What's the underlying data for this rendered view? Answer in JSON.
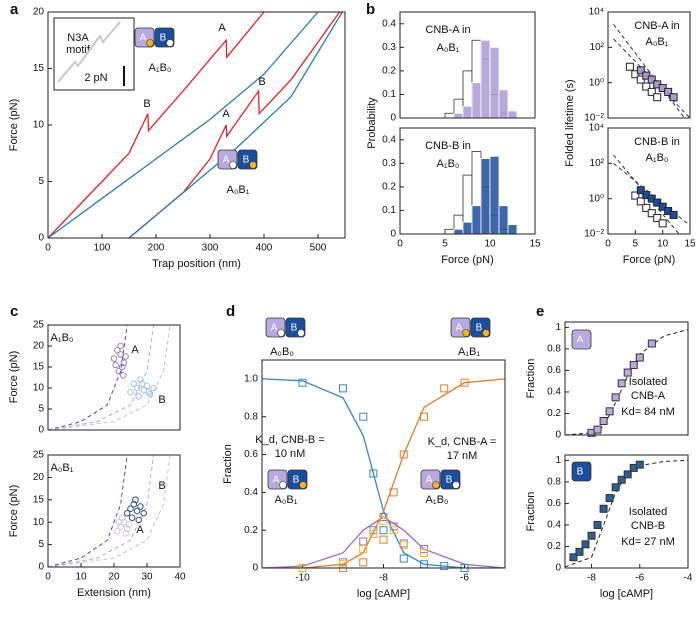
{
  "panels": [
    "a",
    "b",
    "c",
    "d",
    "e"
  ],
  "icons": {
    "a": "A",
    "b": "B"
  },
  "chart_data": [
    {
      "type": "line",
      "xlabel": "Trap position (nm)",
      "ylabel": "Force (pN)",
      "xlim": [
        0,
        550
      ],
      "ylim": [
        0,
        20
      ],
      "xticks": [
        0,
        100,
        200,
        300,
        400,
        500
      ],
      "yticks": [
        0,
        5,
        10,
        15,
        20
      ],
      "series": [
        {
          "color": "#e8212a",
          "mark": "line",
          "x": [
            0,
            50,
            100,
            150,
            185,
            186,
            250,
            330,
            331,
            400
          ],
          "values": [
            0,
            2.5,
            5,
            7.5,
            11,
            9.5,
            13,
            17.5,
            16,
            20
          ]
        },
        {
          "color": "#2b7bba",
          "mark": "line",
          "x": [
            0,
            100,
            200,
            300,
            400,
            500
          ],
          "values": [
            0,
            3.5,
            7,
            10.5,
            14.5,
            20
          ]
        },
        {
          "color": "#e8212a",
          "mark": "line",
          "x": [
            150,
            200,
            250,
            300,
            330,
            331,
            390,
            391,
            450,
            540
          ],
          "values": [
            0,
            2,
            4,
            7,
            10,
            9,
            13,
            11,
            14,
            20
          ]
        },
        {
          "color": "#2b7bba",
          "mark": "line",
          "x": [
            150,
            250,
            350,
            450,
            545
          ],
          "values": [
            0,
            4,
            8,
            12.5,
            20
          ]
        }
      ],
      "annotations": [
        "A",
        "B",
        "A",
        "B",
        "N3A",
        "motif",
        "2 pN",
        "A₁B₀",
        "A₀B₁"
      ]
    },
    {
      "type": "histogram",
      "ylabel": "Probability",
      "xlim": [
        0,
        15
      ],
      "ylim": [
        0,
        0.45
      ],
      "yticks": [
        0,
        0.1,
        0.2,
        0.3,
        0.4
      ],
      "bins": [
        5,
        6,
        7,
        8,
        9,
        10,
        11,
        12,
        13
      ],
      "series": [
        {
          "color": "#333333",
          "fill": "#ffffff",
          "values": [
            0.02,
            0.08,
            0.2,
            0.33,
            0.25,
            0.1,
            0.02,
            0
          ]
        },
        {
          "color": "#ffffff",
          "fill": "#a99bd1",
          "values": [
            0,
            0.02,
            0.05,
            0.15,
            0.33,
            0.3,
            0.12,
            0.03
          ]
        }
      ],
      "annotations": [
        "CNB-A in",
        "A₀B₁"
      ]
    },
    {
      "type": "histogram",
      "xlabel": "Force (pN)",
      "xlim": [
        0,
        15
      ],
      "ylim": [
        0,
        0.45
      ],
      "xticks": [
        0,
        5,
        10,
        15
      ],
      "yticks": [
        0,
        0.1,
        0.2,
        0.3,
        0.4
      ],
      "bins": [
        5,
        6,
        7,
        8,
        9,
        10,
        11,
        12,
        13
      ],
      "series": [
        {
          "color": "#333333",
          "fill": "#ffffff",
          "values": [
            0.02,
            0.08,
            0.25,
            0.35,
            0.2,
            0.08,
            0.02,
            0
          ]
        },
        {
          "color": "#ffffff",
          "fill": "#1b4f9c",
          "values": [
            0,
            0.02,
            0.05,
            0.12,
            0.32,
            0.33,
            0.12,
            0.04
          ]
        }
      ],
      "annotations": [
        "CNB-B in",
        "A₁B₀"
      ]
    },
    {
      "type": "scatter",
      "ylabel": "Folded lifetime (s)",
      "log_y": true,
      "xlim": [
        0,
        15
      ],
      "ylim": [
        0.01,
        10000
      ],
      "yticks": [
        {
          "value": 0.01,
          "label": "10⁻²"
        },
        {
          "value": 1,
          "label": "10⁰"
        },
        {
          "value": 100,
          "label": "10²"
        },
        {
          "value": 10000,
          "label": "10⁴"
        }
      ],
      "series": [
        {
          "color": "#333333",
          "mark": "line",
          "dash": true,
          "x": [
            1,
            14
          ],
          "values": [
            2000,
            0.01
          ]
        },
        {
          "color": "#333333",
          "mark": "line",
          "dash": true,
          "x": [
            1,
            15
          ],
          "values": [
            300,
            0.01
          ]
        },
        {
          "color": "#222222",
          "fill": "#ffffff",
          "mark": "square",
          "x": [
            4,
            5,
            6,
            7,
            8,
            9
          ],
          "values": [
            8,
            3,
            1.5,
            0.6,
            0.3,
            0.15
          ]
        },
        {
          "color": "#222222",
          "fill": "#a99bd1",
          "mark": "square",
          "x": [
            6,
            7,
            8,
            9,
            10,
            11,
            12
          ],
          "values": [
            5,
            2.5,
            1.5,
            0.8,
            0.5,
            0.3,
            0.15
          ]
        }
      ],
      "annotations": [
        "CNB-A in",
        "A₀B₁"
      ]
    },
    {
      "type": "scatter",
      "xlabel": "Force (pN)",
      "log_y": true,
      "xlim": [
        0,
        15
      ],
      "ylim": [
        0.01,
        10000
      ],
      "xticks": [
        0,
        5,
        10,
        15
      ],
      "yticks": [
        {
          "value": 0.01,
          "label": "10⁻²"
        },
        {
          "value": 1,
          "label": "10⁰"
        },
        {
          "value": 100,
          "label": "10²"
        },
        {
          "value": 10000,
          "label": "10⁴"
        }
      ],
      "series": [
        {
          "color": "#333333",
          "mark": "line",
          "dash": true,
          "x": [
            1,
            13
          ],
          "values": [
            300,
            0.01
          ]
        },
        {
          "color": "#333333",
          "mark": "line",
          "dash": true,
          "x": [
            1,
            15
          ],
          "values": [
            100,
            0.03
          ]
        },
        {
          "color": "#222222",
          "fill": "#ffffff",
          "mark": "square",
          "x": [
            5,
            6,
            7,
            8,
            9,
            10
          ],
          "values": [
            1.5,
            0.7,
            0.3,
            0.15,
            0.08,
            0.04
          ]
        },
        {
          "color": "#222222",
          "fill": "#1b4f9c",
          "mark": "square",
          "x": [
            6,
            7,
            8,
            9,
            10,
            11,
            12
          ],
          "values": [
            3,
            1.6,
            1,
            0.6,
            0.35,
            0.2,
            0.12
          ]
        }
      ],
      "annotations": [
        "CNB-B in",
        "A₁B₀"
      ]
    },
    {
      "type": "scatter",
      "ylabel": "Force (pN)",
      "xlim": [
        0,
        40
      ],
      "ylim": [
        0,
        25
      ],
      "yticks": [
        0,
        5,
        10,
        15,
        20,
        25
      ],
      "series": [
        {
          "color": "#6a3fa0",
          "mark": "line",
          "dash": true,
          "x": [
            0,
            10,
            18,
            22,
            24
          ],
          "values": [
            0,
            2,
            6,
            14,
            25
          ]
        },
        {
          "color": "#b3a4d8",
          "mark": "line",
          "dash": true,
          "x": [
            0,
            15,
            25,
            30,
            32
          ],
          "values": [
            0,
            2,
            6,
            14,
            25
          ]
        },
        {
          "color": "#b8c4d8",
          "mark": "line",
          "dash": true,
          "x": [
            0,
            20,
            30,
            35,
            37
          ],
          "values": [
            0,
            2,
            6,
            14,
            25
          ]
        },
        {
          "color": "#8a78c2",
          "mark": "circle",
          "x": [
            20,
            21,
            22,
            22.5,
            23,
            21.5,
            22,
            23.5,
            20.5,
            22.8
          ],
          "values": [
            17,
            19,
            18,
            15,
            16,
            14,
            20,
            17.5,
            15.5,
            13
          ]
        },
        {
          "color": "#9cc0e3",
          "mark": "circle",
          "x": [
            25,
            26,
            27,
            28,
            29,
            30,
            31,
            32,
            28.5,
            27.5,
            30.5
          ],
          "values": [
            9,
            11,
            10,
            12,
            9.5,
            10.5,
            8.5,
            10,
            11,
            8,
            9
          ]
        }
      ],
      "annotations": [
        "A₁B₀",
        "A",
        "B"
      ]
    },
    {
      "type": "scatter",
      "xlabel": "Extension (nm)",
      "ylabel": "Force (pN)",
      "xlim": [
        0,
        40
      ],
      "ylim": [
        0,
        25
      ],
      "xticks": [
        0,
        10,
        20,
        30,
        40
      ],
      "yticks": [
        0,
        5,
        10,
        15,
        20,
        25
      ],
      "series": [
        {
          "color": "#6a3fa0",
          "mark": "line",
          "dash": true,
          "x": [
            0,
            10,
            18,
            22,
            24
          ],
          "values": [
            0,
            2,
            6,
            14,
            25
          ]
        },
        {
          "color": "#b3a4d8",
          "mark": "line",
          "dash": true,
          "x": [
            0,
            15,
            25,
            30,
            32
          ],
          "values": [
            0,
            2,
            6,
            14,
            25
          ]
        },
        {
          "color": "#b8c4d8",
          "mark": "line",
          "dash": true,
          "x": [
            0,
            20,
            30,
            35,
            37
          ],
          "values": [
            0,
            2,
            6,
            14,
            25
          ]
        },
        {
          "color": "#cbbfe6",
          "mark": "circle",
          "x": [
            21,
            22,
            23,
            24,
            22.5,
            23.5,
            24.5,
            21.5
          ],
          "values": [
            8,
            9,
            10,
            8.5,
            11,
            7.5,
            9.5,
            10
          ]
        },
        {
          "color": "#1b3f7c",
          "mark": "circle",
          "x": [
            24,
            25,
            26,
            27,
            28,
            25.5,
            26.5,
            27.5,
            29
          ],
          "values": [
            12,
            13,
            14,
            12.5,
            13.5,
            11,
            15,
            10.5,
            12
          ]
        }
      ],
      "annotations": [
        "A₀B₁",
        "B",
        "A"
      ]
    },
    {
      "type": "line",
      "xlabel": "log [cAMP]",
      "ylabel": "Fraction",
      "xlim": [
        -11,
        -5
      ],
      "ylim": [
        0,
        1.1
      ],
      "xticks": [
        -10,
        -8,
        -6
      ],
      "yticks": [
        0,
        0.2,
        0.4,
        0.6,
        0.8,
        {
          "value": 1,
          "label": "1.0"
        }
      ],
      "series": [
        {
          "color": "#3a86c0",
          "mark": "line",
          "x": [
            -11,
            -10,
            -9,
            -8.5,
            -8,
            -7.5,
            -7,
            -6,
            -5
          ],
          "values": [
            1,
            0.99,
            0.9,
            0.7,
            0.3,
            0.08,
            0.02,
            0,
            0
          ]
        },
        {
          "color": "#e07b2c",
          "mark": "line",
          "x": [
            -11,
            -10,
            -9,
            -8.5,
            -8,
            -7.5,
            -7,
            -6,
            -5
          ],
          "values": [
            0,
            0,
            0.02,
            0.08,
            0.3,
            0.6,
            0.85,
            0.98,
            1
          ]
        },
        {
          "color": "#9b6bbf",
          "mark": "line",
          "x": [
            -11,
            -10,
            -9,
            -8.5,
            -8,
            -7.5,
            -7,
            -6,
            -5
          ],
          "values": [
            0,
            0.01,
            0.08,
            0.2,
            0.27,
            0.2,
            0.1,
            0.02,
            0
          ]
        },
        {
          "color": "#3a86c0",
          "fill": "none",
          "mark": "square",
          "x": [
            -10,
            -9,
            -8.5,
            -8.25,
            -8,
            -7.5,
            -7,
            -6.5,
            -6
          ],
          "values": [
            0.98,
            0.95,
            0.8,
            0.5,
            0.2,
            0.05,
            0.02,
            0.01,
            0
          ]
        },
        {
          "color": "#e07b2c",
          "fill": "none",
          "mark": "square",
          "x": [
            -10,
            -9,
            -8.5,
            -8,
            -7.75,
            -7.5,
            -7,
            -6.5,
            -6
          ],
          "values": [
            0,
            0,
            0.03,
            0.15,
            0.4,
            0.6,
            0.8,
            0.95,
            0.98
          ]
        },
        {
          "color": "#9b6bbf",
          "fill": "none",
          "mark": "square",
          "x": [
            -10,
            -9,
            -8.5,
            -8.25,
            -8,
            -7.75,
            -7.5,
            -7
          ],
          "values": [
            0,
            0.03,
            0.14,
            0.2,
            0.27,
            0.22,
            0.13,
            0.1
          ]
        },
        {
          "color": "#f2b61b",
          "fill": "none",
          "mark": "square",
          "x": [
            -10,
            -9,
            -8.5,
            -8.25,
            -8,
            -7.75,
            -7.5,
            -7
          ],
          "values": [
            0,
            0.02,
            0.1,
            0.18,
            0.25,
            0.2,
            0.12,
            0.08
          ]
        }
      ],
      "annotations": [
        "A₀B₀",
        "A₁B₁",
        "K_d, CNB-B =",
        "10 nM",
        "K_d, CNB-A =",
        "17 nM",
        "A₀B₁",
        "A₁B₀"
      ]
    },
    {
      "type": "scatter",
      "ylabel": "Fraction",
      "xlim": [
        -9.1,
        -4
      ],
      "ylim": [
        0,
        1.05
      ],
      "yticks": [
        0,
        0.2,
        0.4,
        0.6,
        0.8,
        1
      ],
      "series": [
        {
          "color": "#222222",
          "mark": "line",
          "dash": true,
          "x": [
            -9.1,
            -8,
            -7.5,
            -7,
            -6.5,
            -6,
            -5,
            -4
          ],
          "values": [
            0,
            0.02,
            0.08,
            0.3,
            0.55,
            0.75,
            0.92,
            0.98
          ]
        },
        {
          "color": "#333333",
          "fill": "#b8a9de",
          "mark": "square",
          "x": [
            -8,
            -7.75,
            -7.5,
            -7.25,
            -7,
            -6.75,
            -6.5,
            -6.25,
            -6,
            -5.5
          ],
          "values": [
            0.02,
            0.05,
            0.13,
            0.22,
            0.35,
            0.48,
            0.58,
            0.65,
            0.72,
            0.85
          ]
        }
      ],
      "annotations": [
        "Isolated",
        "CNB-A",
        "Kd= 84 nM"
      ]
    },
    {
      "type": "scatter",
      "xlabel": "log [cAMP]",
      "ylabel": "Fraction",
      "xlim": [
        -9.1,
        -4
      ],
      "ylim": [
        0,
        1.05
      ],
      "xticks": [
        -8,
        -6,
        -4
      ],
      "yticks": [
        0,
        0.2,
        0.4,
        0.6,
        0.8,
        1
      ],
      "series": [
        {
          "color": "#222222",
          "mark": "line",
          "dash": true,
          "x": [
            -9.1,
            -8,
            -7.5,
            -7,
            -6.5,
            -6,
            -5,
            -4
          ],
          "values": [
            0.01,
            0.1,
            0.4,
            0.7,
            0.88,
            0.95,
            0.99,
            1
          ]
        },
        {
          "color": "#333333",
          "fill": "#2d5f95",
          "mark": "square",
          "x": [
            -8.75,
            -8.5,
            -8.25,
            -8,
            -7.75,
            -7.5,
            -7.25,
            -7,
            -6.75,
            -6.5,
            -6.25,
            -6
          ],
          "values": [
            0.1,
            0.15,
            0.22,
            0.3,
            0.4,
            0.55,
            0.65,
            0.75,
            0.82,
            0.87,
            0.93,
            0.96
          ]
        }
      ],
      "annotations": [
        "Isolated",
        "CNB-B",
        "Kd= 27 nM"
      ]
    }
  ]
}
